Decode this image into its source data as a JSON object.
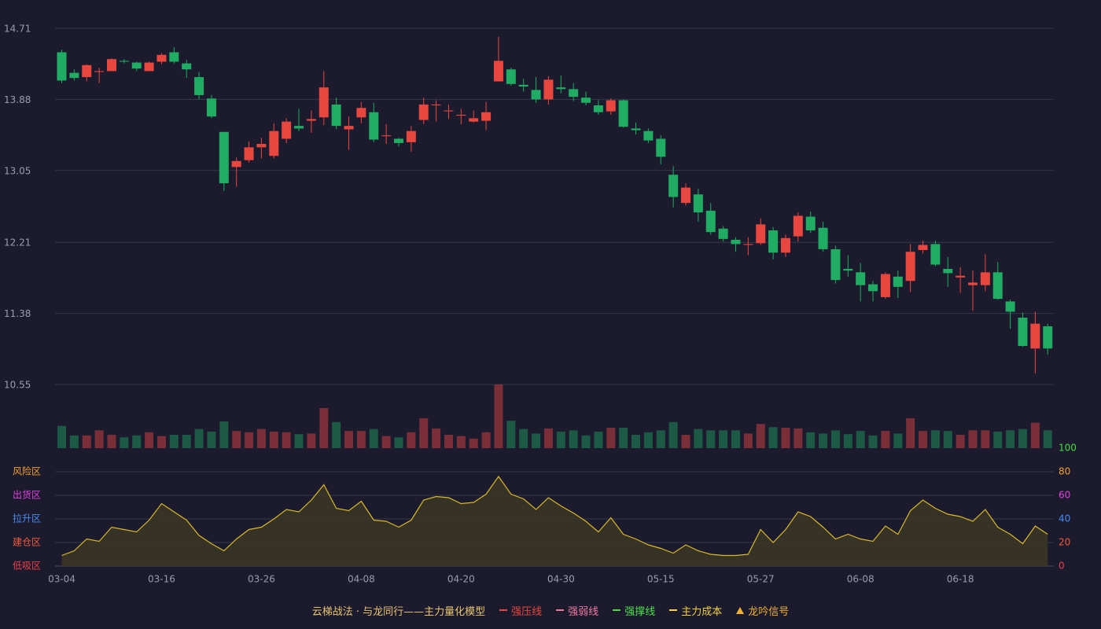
{
  "chart_data": [
    {
      "type": "candlestick",
      "categories": [
        "03-04",
        null,
        null,
        null,
        null,
        null,
        null,
        null,
        "03-16",
        null,
        null,
        null,
        null,
        null,
        null,
        null,
        "03-26",
        null,
        null,
        null,
        null,
        null,
        null,
        null,
        "04-08",
        null,
        null,
        null,
        null,
        null,
        null,
        null,
        "04-20",
        null,
        null,
        null,
        null,
        null,
        null,
        null,
        "04-30",
        null,
        null,
        null,
        null,
        null,
        null,
        null,
        "05-15",
        null,
        null,
        null,
        null,
        null,
        null,
        null,
        "05-27",
        null,
        null,
        null,
        null,
        null,
        null,
        null,
        "06-08",
        null,
        null,
        null,
        null,
        null,
        null,
        null,
        "06-18",
        null,
        null,
        null,
        null,
        null,
        null,
        null
      ],
      "open": [
        14.43,
        14.19,
        14.14,
        14.2,
        14.21,
        14.33,
        14.31,
        14.21,
        14.32,
        14.43,
        14.3,
        14.14,
        13.89,
        13.5,
        13.09,
        13.17,
        13.32,
        13.22,
        13.42,
        13.57,
        13.63,
        13.67,
        13.82,
        13.53,
        13.67,
        13.73,
        13.45,
        13.42,
        13.38,
        13.64,
        13.81,
        13.74,
        13.69,
        13.62,
        13.63,
        14.09,
        14.23,
        14.05,
        13.99,
        13.88,
        14.02,
        14.0,
        13.9,
        13.81,
        13.74,
        13.87,
        13.54,
        13.51,
        13.42,
        13.0,
        12.67,
        12.77,
        12.58,
        12.37,
        12.24,
        12.18,
        12.2,
        12.35,
        12.09,
        12.28,
        12.51,
        12.38,
        12.13,
        11.9,
        11.86,
        11.72,
        11.57,
        11.81,
        11.76,
        12.12,
        12.19,
        11.9,
        11.8,
        11.71,
        11.71,
        11.86,
        11.52,
        11.33,
        10.97,
        11.23
      ],
      "high": [
        14.46,
        14.23,
        14.29,
        14.25,
        14.36,
        14.35,
        14.32,
        14.32,
        14.42,
        14.49,
        14.34,
        14.2,
        13.93,
        13.5,
        13.2,
        13.39,
        13.43,
        13.6,
        13.66,
        13.77,
        13.75,
        14.21,
        13.9,
        13.68,
        13.85,
        13.84,
        13.59,
        13.43,
        13.57,
        13.9,
        13.87,
        13.82,
        13.77,
        13.75,
        13.85,
        14.61,
        14.25,
        14.12,
        14.14,
        14.15,
        14.16,
        14.07,
        13.97,
        13.87,
        13.89,
        13.88,
        13.61,
        13.54,
        13.46,
        13.1,
        12.9,
        12.84,
        12.67,
        12.4,
        12.27,
        12.27,
        12.49,
        12.39,
        12.3,
        12.56,
        12.57,
        12.45,
        12.17,
        12.06,
        11.97,
        11.76,
        11.86,
        11.88,
        12.19,
        12.23,
        12.23,
        12.04,
        11.92,
        11.88,
        12.07,
        11.98,
        11.54,
        11.39,
        11.4,
        11.26
      ],
      "low": [
        14.07,
        14.1,
        14.09,
        14.07,
        14.21,
        14.3,
        14.21,
        14.21,
        14.29,
        14.3,
        14.13,
        13.88,
        13.66,
        12.81,
        12.86,
        13.14,
        13.19,
        13.19,
        13.37,
        13.51,
        13.49,
        13.58,
        13.53,
        13.29,
        13.6,
        13.38,
        13.36,
        13.33,
        13.27,
        13.59,
        13.62,
        13.65,
        13.59,
        13.61,
        13.52,
        14.09,
        14.04,
        13.97,
        13.84,
        13.82,
        13.95,
        13.86,
        13.81,
        13.7,
        13.7,
        13.55,
        13.47,
        13.37,
        13.12,
        12.62,
        12.64,
        12.45,
        12.3,
        12.22,
        12.1,
        12.06,
        12.18,
        12.01,
        12.04,
        12.22,
        12.32,
        12.1,
        11.73,
        11.81,
        11.52,
        11.52,
        11.55,
        11.56,
        11.63,
        12.08,
        11.93,
        11.69,
        11.62,
        11.41,
        11.64,
        11.54,
        11.2,
        10.99,
        10.68,
        10.9
      ],
      "close": [
        14.1,
        14.13,
        14.28,
        14.21,
        14.35,
        14.32,
        14.24,
        14.31,
        14.4,
        14.32,
        14.23,
        13.93,
        13.68,
        12.9,
        13.16,
        13.32,
        13.36,
        13.51,
        13.62,
        13.54,
        13.65,
        14.02,
        13.57,
        13.57,
        13.78,
        13.41,
        13.46,
        13.37,
        13.51,
        13.82,
        13.82,
        13.75,
        13.7,
        13.66,
        13.73,
        14.33,
        14.06,
        14.03,
        13.88,
        14.11,
        14.0,
        13.91,
        13.84,
        13.73,
        13.87,
        13.56,
        13.52,
        13.4,
        13.21,
        12.74,
        12.85,
        12.56,
        12.33,
        12.25,
        12.19,
        12.19,
        12.42,
        12.09,
        12.26,
        12.52,
        12.35,
        12.13,
        11.77,
        11.88,
        11.71,
        11.64,
        11.84,
        11.69,
        12.1,
        12.18,
        11.95,
        11.85,
        11.82,
        11.74,
        11.86,
        11.55,
        11.4,
        11.0,
        11.26,
        10.97
      ],
      "volume": [
        35,
        20,
        20,
        28,
        21,
        17,
        20,
        25,
        19,
        21,
        21,
        30,
        26,
        42,
        27,
        25,
        30,
        26,
        25,
        22,
        23,
        63,
        41,
        27,
        27,
        30,
        19,
        17,
        25,
        47,
        31,
        21,
        19,
        15,
        25,
        100,
        43,
        30,
        23,
        31,
        26,
        28,
        20,
        26,
        32,
        32,
        21,
        25,
        28,
        41,
        21,
        30,
        28,
        28,
        28,
        23,
        38,
        33,
        32,
        31,
        25,
        23,
        28,
        22,
        27,
        20,
        27,
        23,
        47,
        27,
        28,
        27,
        21,
        28,
        28,
        26,
        28,
        30,
        40,
        28
      ],
      "ylim": [
        10.55,
        14.71
      ],
      "yticks": [
        10.55,
        11.38,
        12.21,
        13.05,
        13.88,
        14.71
      ],
      "grid": true,
      "up_color": "#e8473f",
      "down_color": "#20ad63",
      "up_volume_color": "#7a2f38",
      "down_volume_color": "#1d5a45",
      "legend_title": "云梯战法 · 与龙同行——主力量化模型",
      "legend": [
        {
          "name": "强压线",
          "color": "#e8473f",
          "style": "solid"
        },
        {
          "name": "强弱线",
          "color": "#f07aa0",
          "style": "dashed"
        },
        {
          "name": "强撑线",
          "color": "#4ae04a",
          "style": "solid"
        },
        {
          "name": "主力成本",
          "color": "#f0d040",
          "style": "dashed"
        },
        {
          "name": "龙吟信号",
          "color": "#f0b030",
          "style": "triangle"
        }
      ]
    },
    {
      "type": "area",
      "values": [
        9,
        13,
        23,
        21,
        33,
        31,
        29,
        39,
        53,
        46,
        39,
        26,
        19,
        13,
        23,
        31,
        33,
        40,
        48,
        46,
        56,
        69,
        49,
        47,
        55,
        39,
        38,
        33,
        39,
        56,
        59,
        58,
        53,
        54,
        61,
        76,
        61,
        57,
        48,
        58,
        51,
        45,
        38,
        29,
        41,
        27,
        23,
        18,
        15,
        11,
        18,
        13,
        10,
        9,
        9,
        10,
        31,
        20,
        31,
        46,
        42,
        33,
        23,
        27,
        23,
        21,
        34,
        27,
        47,
        56,
        49,
        44,
        42,
        38,
        48,
        33,
        27,
        19,
        34,
        27
      ],
      "color": "#d9b82a",
      "ylim": [
        0,
        100
      ],
      "yticks": [
        0,
        20,
        40,
        60,
        80,
        100
      ],
      "ytick_colors": [
        "#e8404a",
        "#f05a3c",
        "#4a8cf0",
        "#e040e0",
        "#f0a030",
        "#3fe03f"
      ],
      "zone_labels": [
        "低吸区",
        "建仓区",
        "拉升区",
        "出货区",
        "风险区",
        null
      ],
      "grid": true
    }
  ]
}
